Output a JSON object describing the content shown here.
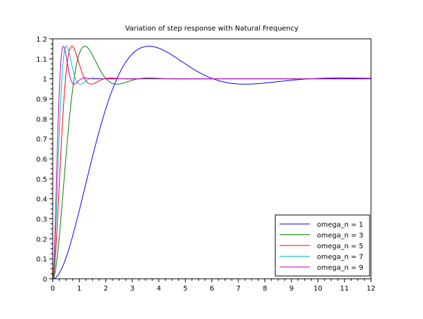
{
  "chart_data": {
    "type": "line",
    "title": "Variation of step response with Natural Frequency",
    "xlabel": "",
    "ylabel": "",
    "xlim": [
      0,
      12
    ],
    "ylim": [
      0,
      1.2
    ],
    "x_ticks": [
      "0",
      "1",
      "2",
      "3",
      "4",
      "5",
      "6",
      "7",
      "8",
      "9",
      "10",
      "11",
      "12"
    ],
    "y_ticks": [
      "0",
      "0.1",
      "0.2",
      "0.3",
      "0.4",
      "0.5",
      "0.6",
      "0.7",
      "0.8",
      "0.9",
      "1",
      "1.1",
      "1.2"
    ],
    "grid": false,
    "legend_position": "bottom-right",
    "damping_ratio": 0.5,
    "series": [
      {
        "name": "omega_n = 1",
        "omega_n": 1,
        "color": "#0000ff"
      },
      {
        "name": "omega_n = 3",
        "omega_n": 3,
        "color": "#008000"
      },
      {
        "name": "omega_n = 5",
        "omega_n": 5,
        "color": "#ff0000"
      },
      {
        "name": "omega_n = 7",
        "omega_n": 7,
        "color": "#00bfbf"
      },
      {
        "name": "omega_n = 9",
        "omega_n": 9,
        "color": "#bf00bf"
      }
    ]
  }
}
